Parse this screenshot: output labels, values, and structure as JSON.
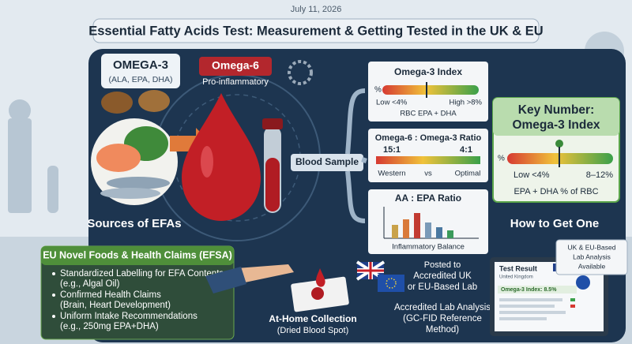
{
  "header": {
    "date": "July 11, 2026",
    "title": "Essential Fatty Acids Test: Measurement & Getting Tested in the UK & EU"
  },
  "omega3": {
    "title": "OMEGA-3",
    "subtitle": "(ALA, EPA, DHA)"
  },
  "omega6": {
    "title": "Omega-6",
    "subtitle": "Pro-inflammatory"
  },
  "sources": "Sources of EFAs",
  "blood_sample": "Blood Sample",
  "index_panel": {
    "title": "Omega-3 Index",
    "unit": "%",
    "low": "Low <4%",
    "high": "High >8%",
    "caption": "RBC EPA + DHA"
  },
  "ratio_panel": {
    "title": "Omega-6 : Omega-3 Ratio",
    "left_value": "15:1",
    "right_value": "4:1",
    "left_label": "Western",
    "middle_label": "vs",
    "right_label": "Optimal"
  },
  "aa_panel": {
    "title": "AA : EPA Ratio",
    "caption": "Inflammatory Balance"
  },
  "key_panel": {
    "title_lines": [
      "Key Number:",
      "Omega-3 Index"
    ],
    "unit": "%",
    "low": "Low <4%",
    "target": "8–12%",
    "caption": "EPA + DHA % of RBC"
  },
  "how_to": "How to Get One",
  "eu_box": {
    "title": "EU Novel Foods & Health Claims (EFSA)",
    "bullets": [
      [
        "Standardized Labelling for EFA Contents",
        "(e.g., Algal Oil)"
      ],
      [
        "Confirmed Health Claims",
        "(Brain, Heart Development)"
      ],
      [
        "Uniform Intake Recommendations",
        "(e.g., 250mg EPA+DHA)"
      ]
    ]
  },
  "collection": {
    "title": "At-Home Collection",
    "subtitle": "(Dried Blood Spot)"
  },
  "posted": [
    "Posted to",
    "Accredited UK",
    "or EU-Based Lab"
  ],
  "analysis": [
    "Accredited Lab Analysis",
    "(GC-FID Reference",
    "Method)"
  ],
  "report": {
    "title": "Test Result",
    "country": "United Kingdom",
    "result": "Omega-3 Index: 8.5%"
  },
  "lab_badge": [
    "UK & EU-Based",
    "Lab Analysis",
    "Available"
  ]
}
